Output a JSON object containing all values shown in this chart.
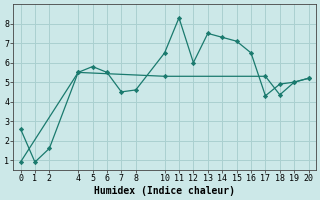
{
  "xlabel": "Humidex (Indice chaleur)",
  "bg_color": "#cce8e8",
  "grid_color": "#aad0d0",
  "line_color": "#1a7a6e",
  "xlim": [
    -0.5,
    20.5
  ],
  "ylim": [
    0.5,
    9.0
  ],
  "xticks": [
    0,
    1,
    2,
    4,
    5,
    6,
    7,
    8,
    10,
    11,
    12,
    13,
    14,
    15,
    16,
    17,
    18,
    19,
    20
  ],
  "yticks": [
    1,
    2,
    3,
    4,
    5,
    6,
    7,
    8
  ],
  "line1_x": [
    0,
    1,
    2,
    4,
    5,
    6,
    7,
    8,
    10,
    11,
    12,
    13,
    14,
    15,
    16,
    17,
    18,
    19,
    20
  ],
  "line1_y": [
    2.6,
    0.9,
    1.6,
    5.5,
    5.8,
    5.5,
    4.5,
    4.6,
    6.5,
    8.3,
    6.0,
    7.5,
    7.3,
    7.1,
    6.5,
    4.3,
    4.9,
    5.0,
    5.2
  ],
  "line2_x": [
    0,
    4,
    10,
    17,
    18,
    19,
    20
  ],
  "line2_y": [
    0.9,
    5.5,
    5.3,
    5.3,
    4.35,
    5.0,
    5.2
  ],
  "font_family": "monospace",
  "tick_fontsize": 6,
  "label_fontsize": 7
}
